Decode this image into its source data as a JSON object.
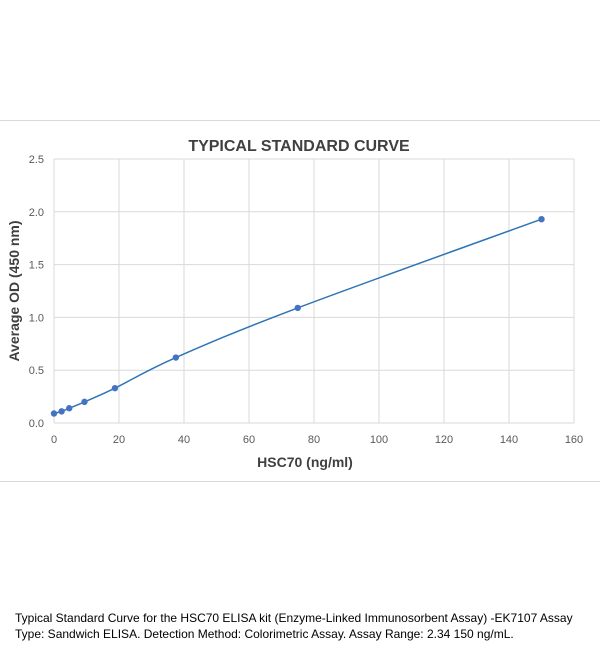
{
  "chart_data": {
    "type": "scatter",
    "title": "TYPICAL STANDARD CURVE",
    "xlabel": "HSC70 (ng/ml)",
    "ylabel": "Average OD (450 nm)",
    "xlim": [
      0,
      160
    ],
    "ylim": [
      0,
      2.5
    ],
    "xticks": [
      "0",
      "20",
      "40",
      "60",
      "80",
      "100",
      "120",
      "140",
      "160"
    ],
    "yticks": [
      "0.0",
      "0.5",
      "1.0",
      "1.5",
      "2.0",
      "2.5"
    ],
    "grid": true,
    "trendline": true,
    "points": [
      {
        "x": 0,
        "y": 0.09
      },
      {
        "x": 2.34,
        "y": 0.11
      },
      {
        "x": 4.69,
        "y": 0.14
      },
      {
        "x": 9.38,
        "y": 0.2
      },
      {
        "x": 18.75,
        "y": 0.33
      },
      {
        "x": 37.5,
        "y": 0.62
      },
      {
        "x": 75,
        "y": 1.09
      },
      {
        "x": 150,
        "y": 1.93
      }
    ],
    "colors": {
      "line": "#2e75b6",
      "marker": "#4472c4",
      "grid": "#d9d9d9"
    }
  },
  "caption": "Typical Standard Curve for the HSC70 ELISA kit (Enzyme-Linked Immunosorbent Assay) -EK7107 Assay Type: Sandwich ELISA. Detection Method: Colorimetric Assay. Assay Range: 2.34 150 ng/mL."
}
